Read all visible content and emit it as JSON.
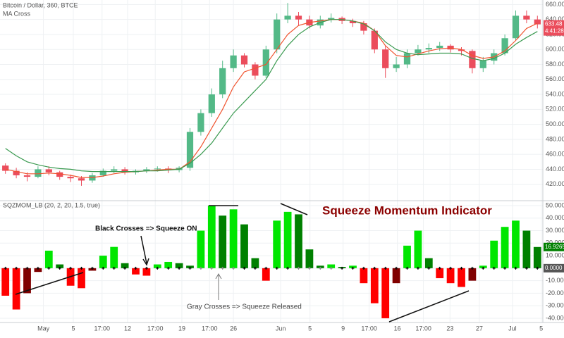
{
  "chart_data": [
    {
      "type": "candlestick",
      "title": "Bitcoin / Dollar, 360, BTCE",
      "subtitle": "MA Cross",
      "xlim": [
        0,
        50
      ],
      "ylim": [
        400,
        666
      ],
      "yticks": [
        {
          "value": 420,
          "label": "420.00"
        },
        {
          "value": 440,
          "label": "440.00"
        },
        {
          "value": 460,
          "label": "460.00"
        },
        {
          "value": 480,
          "label": "480.00"
        },
        {
          "value": 500,
          "label": "500.00"
        },
        {
          "value": 520,
          "label": "520.00"
        },
        {
          "value": 540,
          "label": "540.00"
        },
        {
          "value": 560,
          "label": "560.00"
        },
        {
          "value": 580,
          "label": "580.00"
        },
        {
          "value": 600,
          "label": "600.00"
        },
        {
          "value": 620,
          "label": "620.00"
        },
        {
          "value": 640,
          "label": "640.00"
        },
        {
          "value": 660,
          "label": "660.00"
        }
      ],
      "grid": true,
      "up_color": "#53b987",
      "down_color": "#eb4d5c",
      "open": [
        445,
        438,
        432,
        430,
        440,
        436,
        430,
        428,
        425,
        432,
        438,
        440,
        436,
        438,
        440,
        441,
        439,
        442,
        490,
        515,
        540,
        575,
        592,
        580,
        565,
        600,
        640,
        645,
        640,
        632,
        640,
        642,
        638,
        635,
        625,
        600,
        575,
        580,
        595,
        600,
        602,
        605,
        600,
        598,
        575,
        585,
        595,
        615,
        645,
        640
      ],
      "high": [
        448,
        442,
        436,
        444,
        444,
        438,
        433,
        431,
        435,
        441,
        444,
        443,
        440,
        443,
        444,
        444,
        444,
        495,
        520,
        548,
        585,
        600,
        595,
        583,
        605,
        648,
        662,
        650,
        645,
        645,
        648,
        644,
        641,
        638,
        628,
        605,
        590,
        600,
        606,
        608,
        610,
        607,
        603,
        600,
        590,
        600,
        620,
        652,
        652,
        645
      ],
      "low": [
        434,
        428,
        424,
        428,
        432,
        426,
        423,
        418,
        422,
        430,
        435,
        433,
        433,
        435,
        437,
        435,
        436,
        438,
        485,
        510,
        535,
        570,
        576,
        560,
        562,
        595,
        635,
        632,
        628,
        628,
        636,
        634,
        630,
        620,
        595,
        562,
        570,
        575,
        592,
        595,
        598,
        596,
        592,
        568,
        570,
        580,
        592,
        612,
        635,
        628
      ],
      "close": [
        438,
        432,
        430,
        440,
        436,
        430,
        428,
        425,
        432,
        438,
        440,
        436,
        438,
        440,
        441,
        439,
        442,
        490,
        515,
        540,
        575,
        592,
        580,
        565,
        600,
        640,
        645,
        640,
        632,
        640,
        642,
        638,
        635,
        625,
        600,
        575,
        580,
        595,
        600,
        602,
        605,
        600,
        598,
        575,
        585,
        595,
        615,
        645,
        640,
        633.48
      ],
      "countdown": "4:41:28",
      "lines": [
        {
          "color": "#f0532e",
          "values": [
            440,
            437,
            434,
            434,
            435,
            434,
            432,
            429,
            429,
            431,
            434,
            436,
            437,
            438,
            439,
            440,
            440,
            450,
            470,
            495,
            520,
            550,
            570,
            575,
            580,
            600,
            620,
            632,
            636,
            638,
            640,
            640,
            638,
            635,
            625,
            605,
            592,
            590,
            594,
            598,
            601,
            602,
            600,
            592,
            588,
            590,
            598,
            612,
            628,
            635
          ]
        },
        {
          "color": "#3a9a50",
          "values": [
            468,
            458,
            450,
            446,
            443,
            441,
            440,
            438,
            437,
            437,
            437,
            437,
            437,
            438,
            438,
            439,
            440,
            448,
            460,
            475,
            495,
            515,
            530,
            545,
            560,
            585,
            605,
            620,
            630,
            636,
            640,
            640,
            638,
            634,
            625,
            610,
            600,
            595,
            593,
            594,
            595,
            595,
            594,
            588,
            585,
            588,
            595,
            607,
            616,
            624
          ]
        }
      ]
    },
    {
      "type": "bar",
      "title": "SQZMOM_LB (20, 2, 20, 1.5, true)",
      "xlim": [
        0,
        50
      ],
      "ylim": [
        -43.4,
        52.8
      ],
      "yticks": [
        {
          "value": 50,
          "label": "50.0000"
        },
        {
          "value": 40,
          "label": "40.0000"
        },
        {
          "value": 30,
          "label": "30.0000"
        },
        {
          "value": 20,
          "label": "20.0000"
        },
        {
          "value": 10,
          "label": "10.0000"
        },
        {
          "value": 0,
          "label": "0.0000"
        },
        {
          "value": -10,
          "label": "-10.0000"
        },
        {
          "value": -20,
          "label": "-20.0000"
        },
        {
          "value": -30,
          "label": "-30.0000"
        },
        {
          "value": -40,
          "label": "-40.0000"
        }
      ],
      "xticks": [
        {
          "value": 4,
          "label": "May"
        },
        {
          "value": 6.75,
          "label": "5"
        },
        {
          "value": 9.4,
          "label": "17:00"
        },
        {
          "value": 11.75,
          "label": "12"
        },
        {
          "value": 14.3,
          "label": "17:00"
        },
        {
          "value": 16.75,
          "label": "19"
        },
        {
          "value": 19.3,
          "label": "17:00"
        },
        {
          "value": 21.5,
          "label": "26"
        },
        {
          "value": 25.85,
          "label": "Jun"
        },
        {
          "value": 28.55,
          "label": "5"
        },
        {
          "value": 31.6,
          "label": "9"
        },
        {
          "value": 34,
          "label": "17:00"
        },
        {
          "value": 36.6,
          "label": "16"
        },
        {
          "value": 39,
          "label": "17:00"
        },
        {
          "value": 41.45,
          "label": "23"
        },
        {
          "value": 44.15,
          "label": "27"
        },
        {
          "value": 47.2,
          "label": "Jul"
        },
        {
          "value": 49.85,
          "label": "5"
        }
      ],
      "grid": true,
      "values": [
        -22,
        -33,
        -20,
        -3,
        14,
        3,
        -14,
        -16,
        -2,
        10,
        17,
        4,
        -5,
        -6,
        3,
        5,
        4,
        2,
        30,
        50,
        42,
        47,
        35,
        8,
        -10,
        38,
        45,
        43,
        15,
        2,
        3,
        1,
        2,
        -12,
        -28,
        -40,
        -12,
        18,
        30,
        8,
        -8,
        -12,
        -15,
        -10,
        2,
        22,
        33,
        38,
        30,
        16.9265
      ],
      "colors": {
        "pos_up": "#00e600",
        "pos_down": "#008000",
        "neg_down": "#ff0000",
        "neg_up": "#800000"
      },
      "squeeze_on": [
        true,
        true,
        true,
        true,
        true,
        true,
        true,
        true,
        true,
        true,
        true,
        true,
        true,
        true,
        true,
        true,
        true,
        true,
        false,
        false,
        false,
        false,
        true,
        true,
        true,
        true,
        true,
        false,
        false,
        false,
        false,
        true,
        true,
        true,
        true,
        true,
        true,
        true,
        true,
        true,
        true,
        true,
        true,
        true,
        true,
        true,
        true,
        true,
        true,
        true
      ],
      "annotations": [
        "Squeeze Momentum Indicator",
        "Black Crosses => Squeeze ON",
        "Gray Crosses => Squeeze Released"
      ]
    }
  ]
}
